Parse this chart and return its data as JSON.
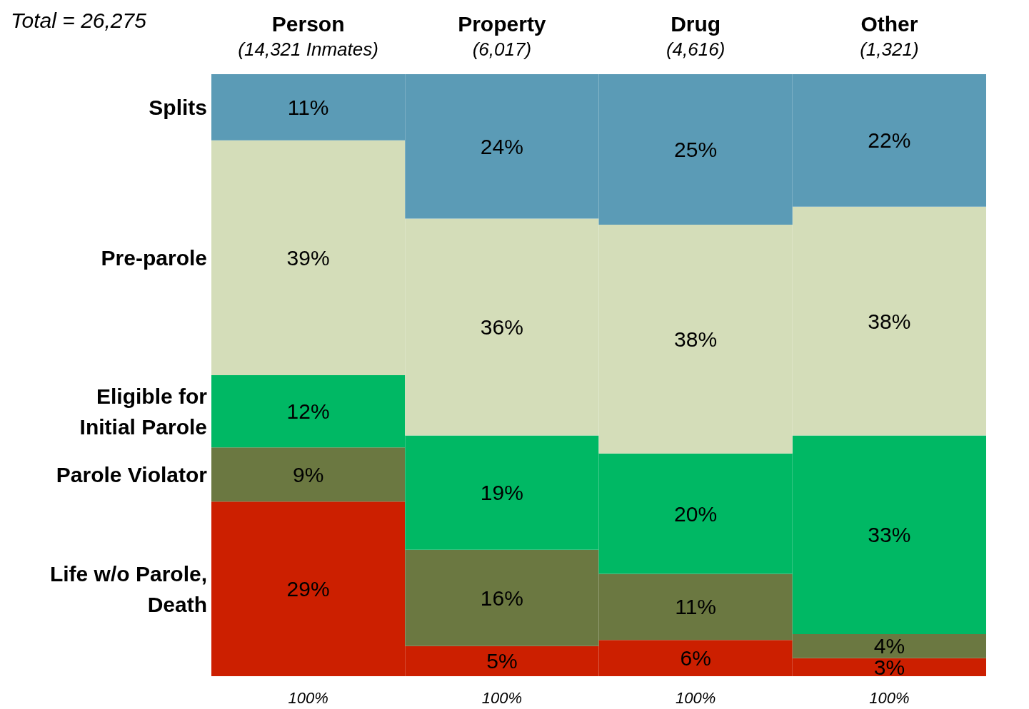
{
  "chart_data": {
    "type": "bar",
    "title": "Total = 26,275",
    "stacked": true,
    "legend": false,
    "data_labels": true,
    "categories": [
      "Person\n(14,321 Inmates)",
      "Property\n(6,017)",
      "Drug\n(4,616)",
      "Other\n(1,321)"
    ],
    "series": [
      {
        "name": "Life w/o Parole,\nDeath",
        "color": "#cc1f00",
        "values": [
          29,
          5,
          6,
          3
        ],
        "value_labels": [
          "29%",
          "5%",
          "6%",
          "3%"
        ]
      },
      {
        "name": "Parole Violator",
        "color": "#6b7841",
        "values": [
          9,
          16,
          11,
          4
        ],
        "value_labels": [
          "9%",
          "16%",
          "11%",
          "4%"
        ]
      },
      {
        "name": "Eligible for\nInitial Parole",
        "color": "#00b864",
        "values": [
          12,
          19,
          20,
          33
        ],
        "value_labels": [
          "12%",
          "19%",
          "20%",
          "33%"
        ]
      },
      {
        "name": "Pre-parole",
        "color": "#d4ddb9",
        "values": [
          39,
          36,
          38,
          38
        ],
        "value_labels": [
          "39%",
          "36%",
          "38%",
          "38%"
        ]
      },
      {
        "name": "Splits",
        "color": "#5b9bb6",
        "values": [
          11,
          24,
          25,
          22
        ],
        "value_labels": [
          "11%",
          "24%",
          "25%",
          "22%"
        ]
      }
    ],
    "totals": [
      "100%",
      "100%",
      "100%",
      "100%"
    ]
  }
}
